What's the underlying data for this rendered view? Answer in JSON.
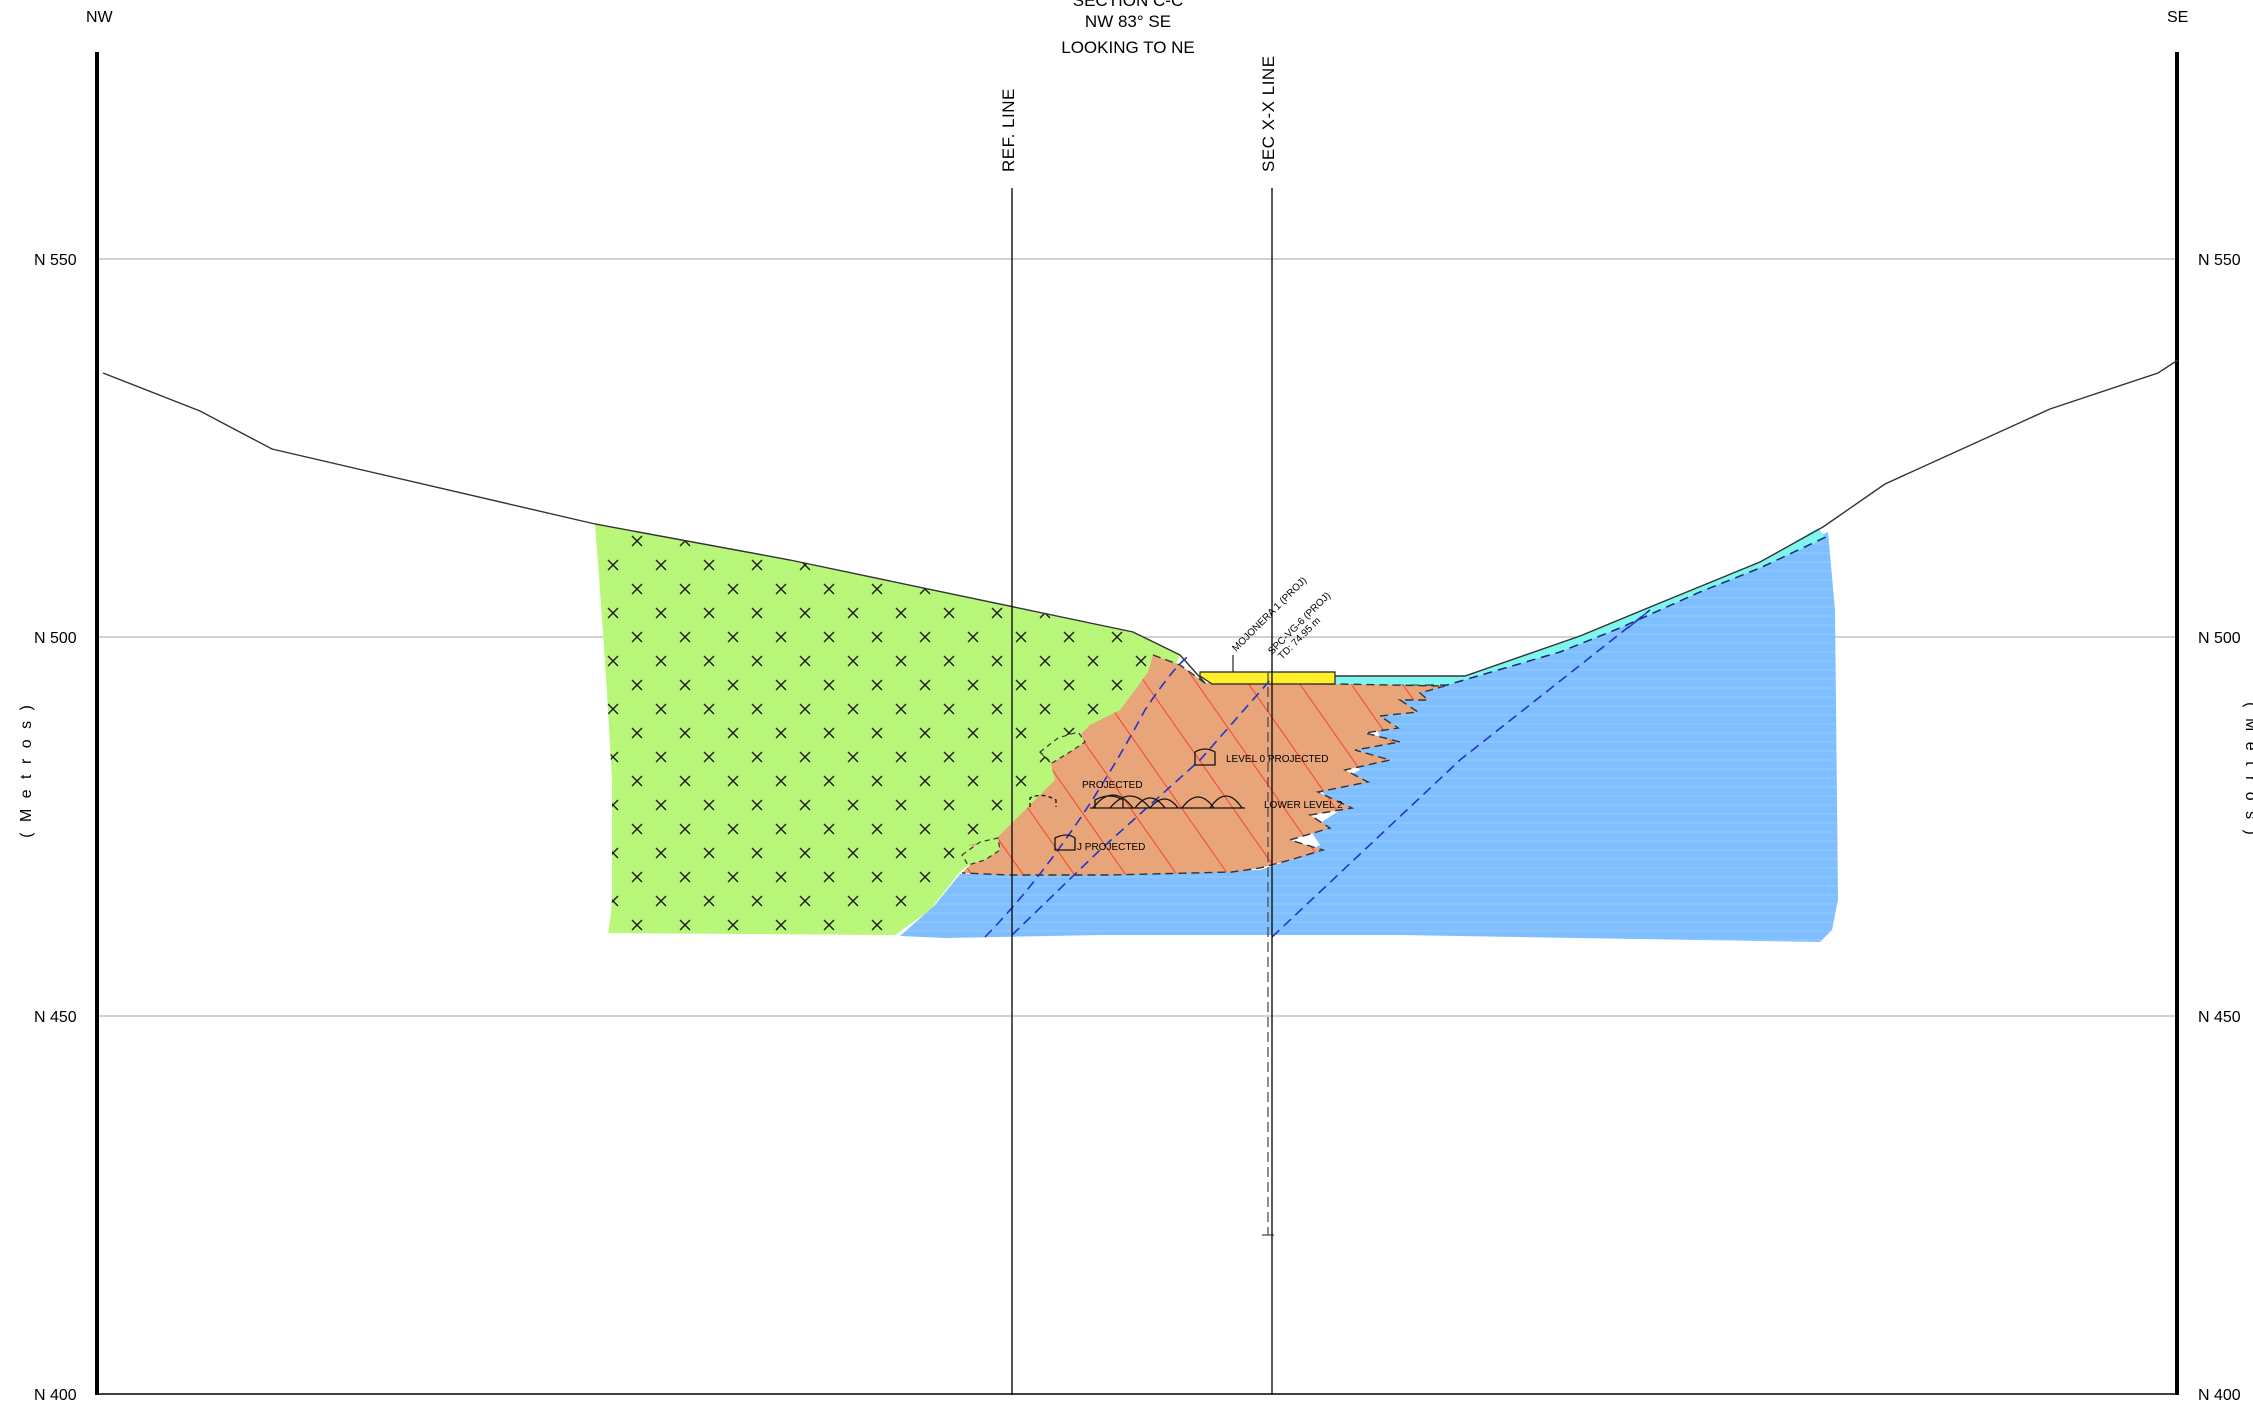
{
  "header": {
    "title": "SECTION C-C",
    "orientation": "NW 83° SE",
    "view": "LOOKING TO NE"
  },
  "corners": {
    "left": "NW",
    "right": "SE"
  },
  "axis_unit": "( M e t r o s )",
  "elevations": [
    {
      "value": 550,
      "label": "N 550"
    },
    {
      "value": 500,
      "label": "N 500"
    },
    {
      "value": 450,
      "label": "N 450"
    },
    {
      "value": 400,
      "label": "N 400"
    }
  ],
  "reference_lines": {
    "ref": "REF. LINE",
    "sec": "SEC X-X LINE"
  },
  "drillholes": {
    "hole_a": "MOJONERA 1 (PROJ)",
    "hole_b_name": "SPC-VG-6 (PROJ)",
    "hole_b_depth": "TD: 74.95 m"
  },
  "workings": {
    "level0": "LEVEL 0 PROJECTED",
    "projected_upper": "PROJECTED",
    "lower_level": "LOWER LEVEL 2",
    "projected_lower": "J PROJECTED"
  },
  "colors": {
    "green_unit": "#b8f77a",
    "orange_unit": "#e8a57a",
    "hatch_red": "#ff2a1a",
    "blue_unit": "#7fbfff",
    "cyan_unit": "#7ff5f0",
    "yellow_unit": "#ffee2a",
    "fault_blue": "#2233cc",
    "grid": "#b8b8b8"
  }
}
